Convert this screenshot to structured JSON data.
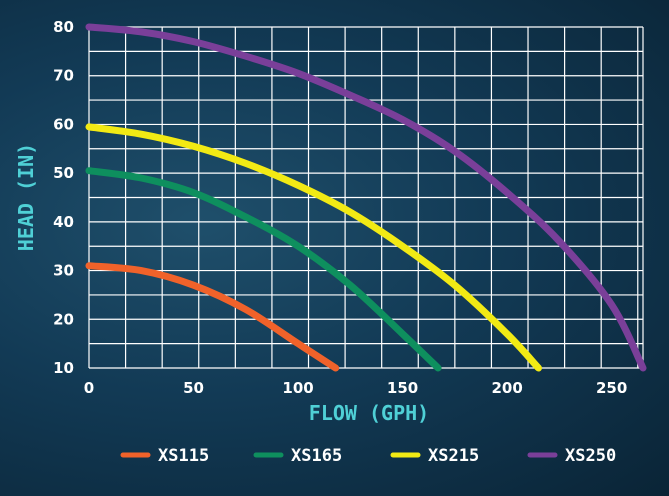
{
  "chart_data": {
    "type": "line",
    "title": "",
    "xlabel": "FLOW (GPH)",
    "ylabel": "HEAD (IN)",
    "xlim": [
      0,
      265
    ],
    "ylim": [
      10,
      80
    ],
    "x_ticks": [
      0,
      50,
      100,
      150,
      200,
      250
    ],
    "y_ticks": [
      10,
      20,
      30,
      40,
      50,
      60,
      70,
      80
    ],
    "grid": true,
    "legend_position": "bottom",
    "series": [
      {
        "name": "XS115",
        "color": "#f0622a",
        "points": [
          [
            0,
            31
          ],
          [
            25,
            30
          ],
          [
            50,
            27
          ],
          [
            75,
            22
          ],
          [
            100,
            15
          ],
          [
            118,
            10
          ]
        ]
      },
      {
        "name": "XS165",
        "color": "#0e8f5e",
        "points": [
          [
            0,
            50.5
          ],
          [
            25,
            49
          ],
          [
            50,
            46
          ],
          [
            75,
            41
          ],
          [
            100,
            35
          ],
          [
            125,
            27
          ],
          [
            150,
            17
          ],
          [
            167,
            10
          ]
        ]
      },
      {
        "name": "XS215",
        "color": "#f2ea14",
        "points": [
          [
            0,
            59.5
          ],
          [
            25,
            58
          ],
          [
            50,
            55.5
          ],
          [
            75,
            52
          ],
          [
            100,
            47.5
          ],
          [
            125,
            42
          ],
          [
            150,
            35
          ],
          [
            175,
            27
          ],
          [
            200,
            17
          ],
          [
            215,
            10
          ]
        ]
      },
      {
        "name": "XS250",
        "color": "#7a3f99",
        "points": [
          [
            0,
            80
          ],
          [
            25,
            79
          ],
          [
            50,
            77
          ],
          [
            75,
            74
          ],
          [
            100,
            70.5
          ],
          [
            125,
            66
          ],
          [
            150,
            61
          ],
          [
            175,
            54.5
          ],
          [
            200,
            46
          ],
          [
            225,
            36
          ],
          [
            250,
            23
          ],
          [
            265,
            10
          ]
        ]
      }
    ]
  }
}
